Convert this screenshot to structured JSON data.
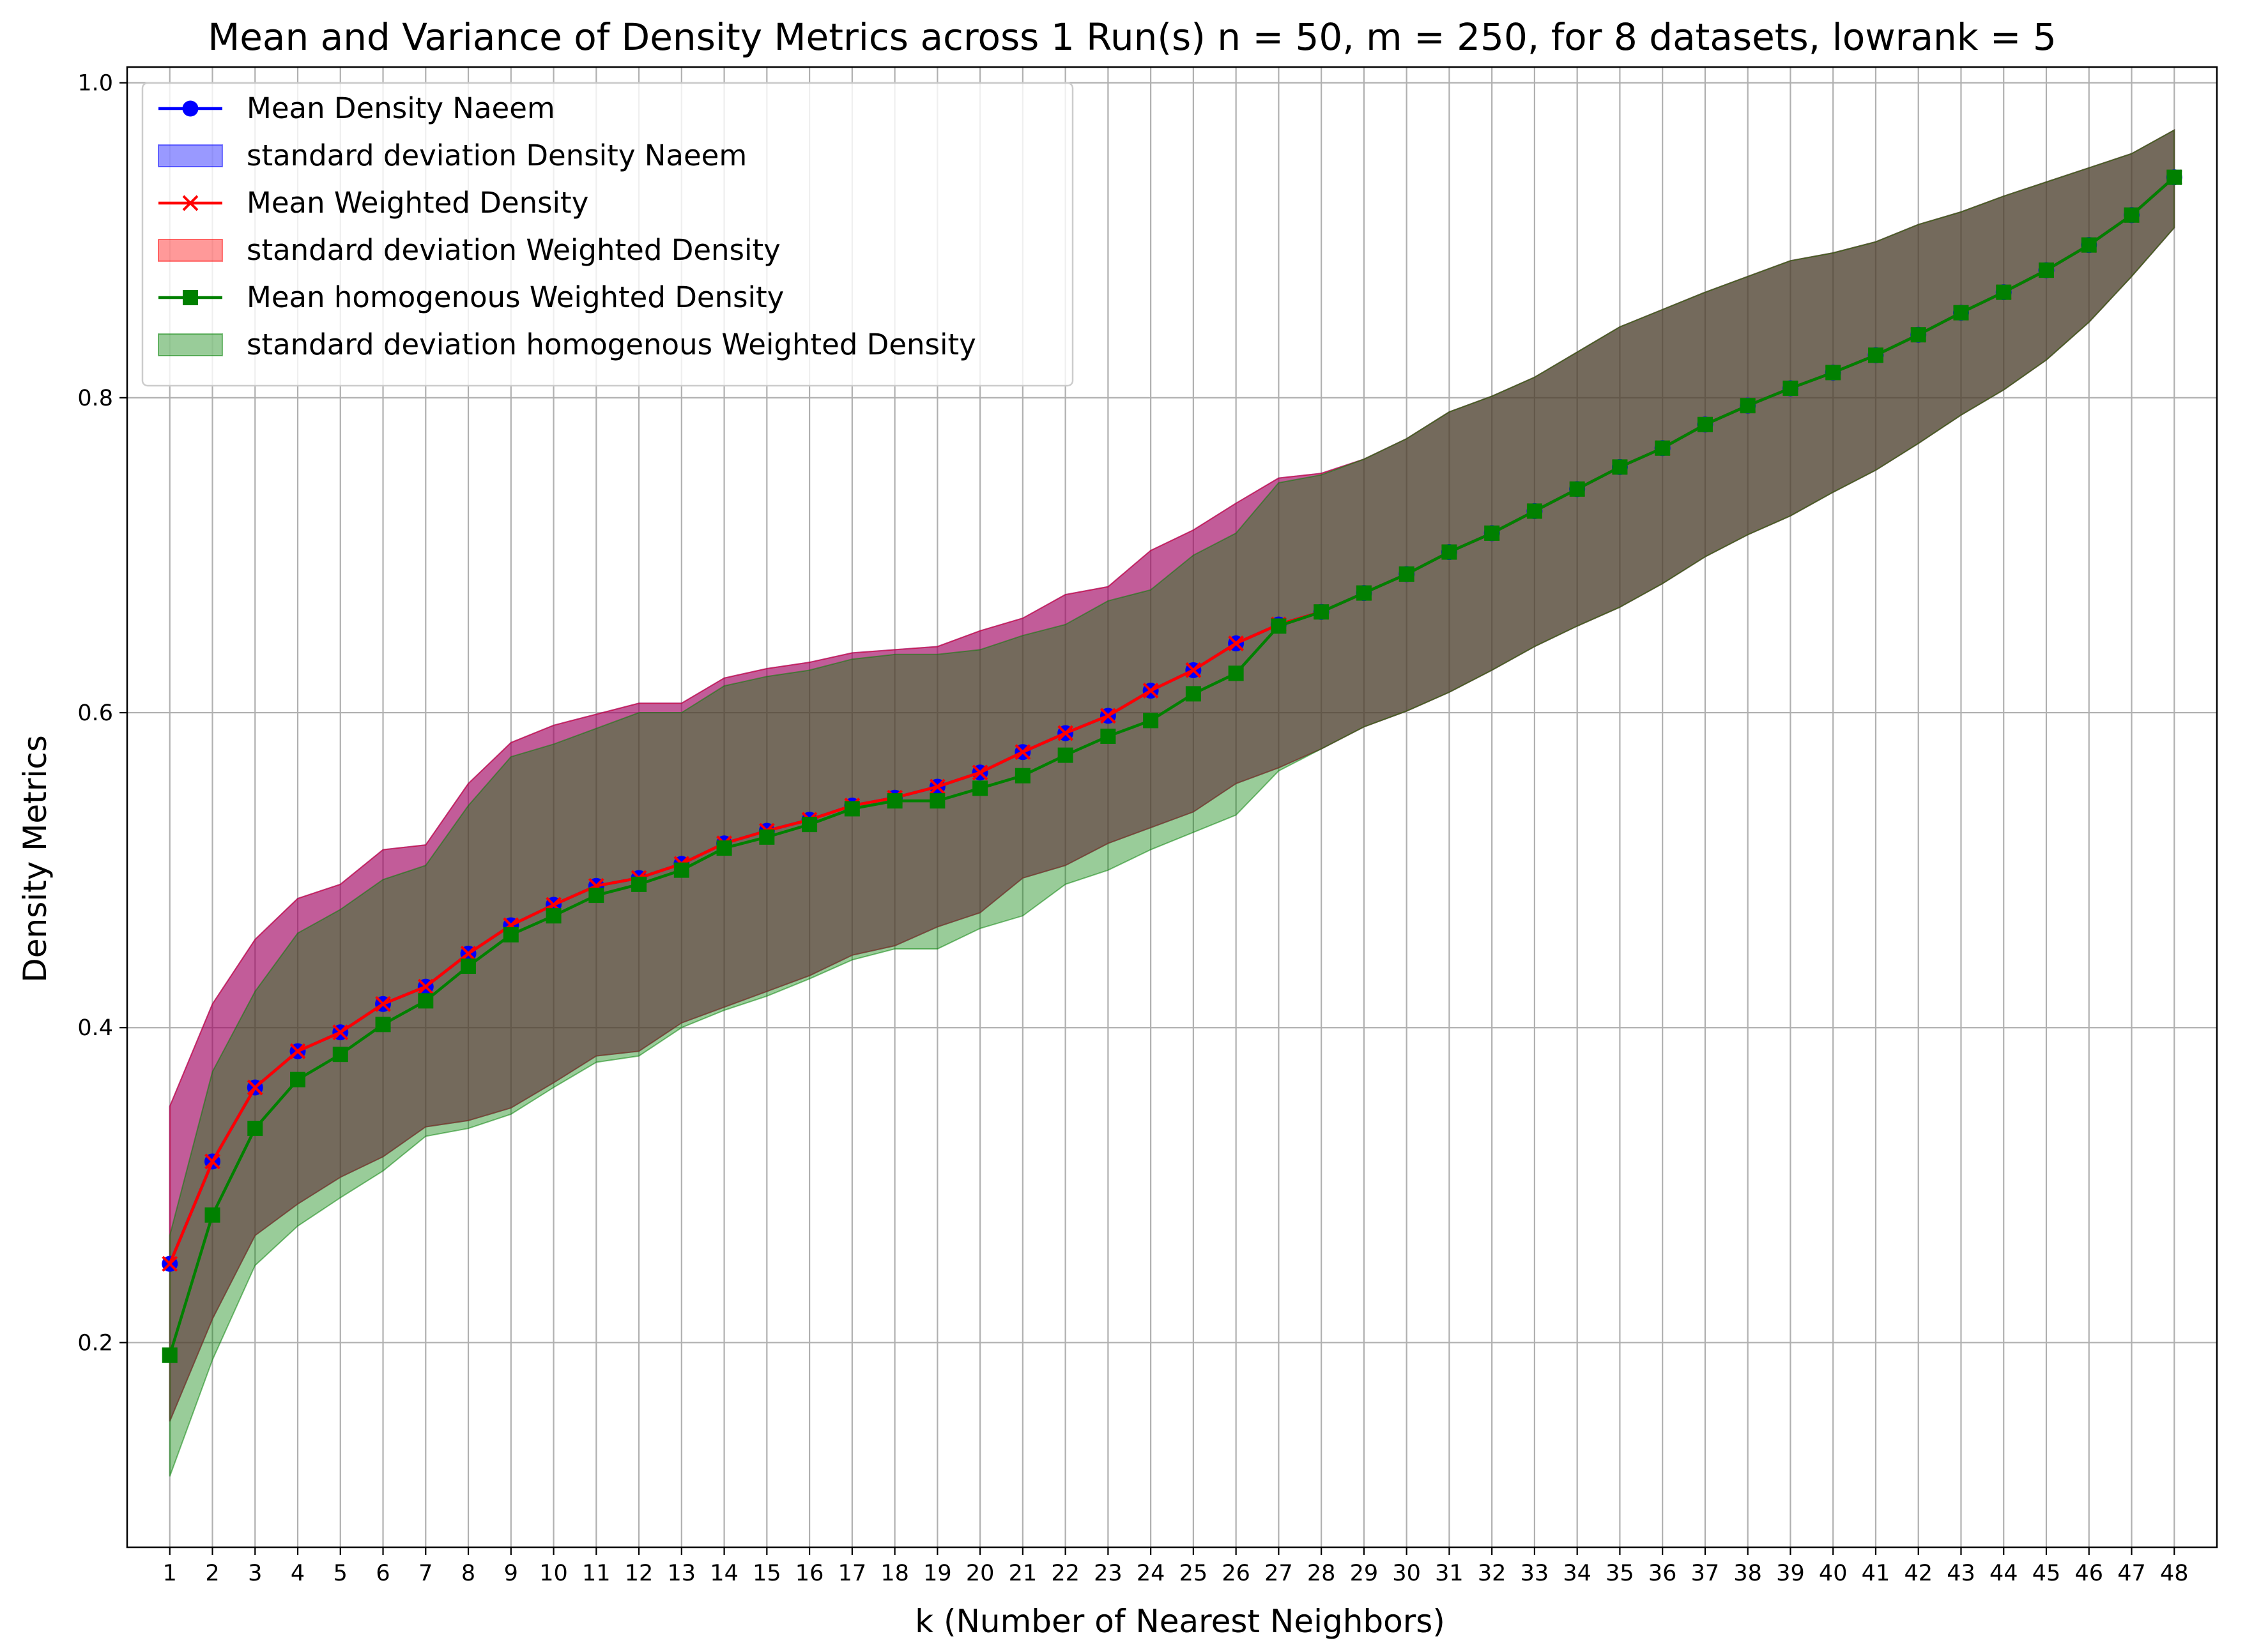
{
  "chart_data": {
    "type": "line",
    "title": "Mean and Variance of Density Metrics across 1 Run(s) n  = 50, m  = 250, for 8 datasets, lowrank = 5",
    "xlabel": "k (Number of Nearest Neighbors)",
    "ylabel": "Density Metrics",
    "xlim": [
      0.0,
      49.0
    ],
    "ylim": [
      0.07,
      1.01
    ],
    "yticks": [
      0.2,
      0.4,
      0.6,
      0.8,
      1.0
    ],
    "ytick_labels": [
      "0.2",
      "0.4",
      "0.6",
      "0.8",
      "1.0"
    ],
    "grid": true,
    "legend_position": "upper-left",
    "x": [
      1,
      2,
      3,
      4,
      5,
      6,
      7,
      8,
      9,
      10,
      11,
      12,
      13,
      14,
      15,
      16,
      17,
      18,
      19,
      20,
      21,
      22,
      23,
      24,
      25,
      26,
      27,
      28,
      29,
      30,
      31,
      32,
      33,
      34,
      35,
      36,
      37,
      38,
      39,
      40,
      41,
      42,
      43,
      44,
      45,
      46,
      47,
      48
    ],
    "xtick_labels": [
      "1",
      "2",
      "3",
      "4",
      "5",
      "6",
      "7",
      "8",
      "9",
      "10",
      "11",
      "12",
      "13",
      "14",
      "15",
      "16",
      "17",
      "18",
      "19",
      "20",
      "21",
      "22",
      "23",
      "24",
      "25",
      "26",
      "27",
      "28",
      "29",
      "30",
      "31",
      "32",
      "33",
      "34",
      "35",
      "36",
      "37",
      "38",
      "39",
      "40",
      "41",
      "42",
      "43",
      "44",
      "45",
      "46",
      "47",
      "48"
    ],
    "legend": [
      {
        "label": "Mean Density Naeem",
        "kind": "line",
        "color": "#0000ff",
        "marker": "circle"
      },
      {
        "label": "standard deviation Density Naeem",
        "kind": "band",
        "color": "#0000ff"
      },
      {
        "label": "Mean Weighted Density",
        "kind": "line",
        "color": "#ff0000",
        "marker": "x"
      },
      {
        "label": "standard deviation Weighted Density",
        "kind": "band",
        "color": "#ff0000"
      },
      {
        "label": "Mean homogenous Weighted Density",
        "kind": "line",
        "color": "#008000",
        "marker": "square"
      },
      {
        "label": "standard deviation homogenous Weighted Density",
        "kind": "band",
        "color": "#008000"
      }
    ],
    "series": [
      {
        "name": "Mean Density Naeem",
        "color": "#0000ff",
        "marker": "circle",
        "values": [
          0.25,
          0.315,
          0.362,
          0.385,
          0.397,
          0.415,
          0.426,
          0.447,
          0.465,
          0.478,
          0.49,
          0.495,
          0.504,
          0.517,
          0.525,
          0.532,
          0.541,
          0.546,
          0.553,
          0.562,
          0.575,
          0.587,
          0.598,
          0.614,
          0.627,
          0.644,
          0.656,
          0.664,
          0.676,
          0.688,
          0.702,
          0.714,
          0.728,
          0.742,
          0.756,
          0.768,
          0.783,
          0.795,
          0.806,
          0.816,
          0.827,
          0.84,
          0.854,
          0.867,
          0.881,
          0.897,
          0.916,
          0.94
        ],
        "std_lower": [
          0.15,
          0.215,
          0.268,
          0.288,
          0.305,
          0.318,
          0.337,
          0.341,
          0.349,
          0.365,
          0.382,
          0.385,
          0.403,
          0.413,
          0.423,
          0.433,
          0.446,
          0.452,
          0.464,
          0.473,
          0.495,
          0.503,
          0.517,
          0.527,
          0.537,
          0.555,
          0.565,
          0.577,
          0.591,
          0.601,
          0.613,
          0.627,
          0.642,
          0.655,
          0.667,
          0.682,
          0.699,
          0.713,
          0.725,
          0.74,
          0.754,
          0.771,
          0.789,
          0.805,
          0.824,
          0.848,
          0.877,
          0.908
        ],
        "std_upper": [
          0.35,
          0.415,
          0.456,
          0.482,
          0.491,
          0.513,
          0.516,
          0.555,
          0.581,
          0.592,
          0.599,
          0.606,
          0.606,
          0.622,
          0.628,
          0.632,
          0.638,
          0.64,
          0.642,
          0.652,
          0.66,
          0.675,
          0.68,
          0.703,
          0.716,
          0.733,
          0.749,
          0.752,
          0.761,
          0.774,
          0.791,
          0.801,
          0.813,
          0.829,
          0.845,
          0.856,
          0.867,
          0.877,
          0.887,
          0.892,
          0.899,
          0.91,
          0.918,
          0.928,
          0.937,
          0.946,
          0.955,
          0.97
        ]
      },
      {
        "name": "Mean Weighted Density",
        "color": "#ff0000",
        "marker": "x",
        "values": [
          0.25,
          0.315,
          0.362,
          0.385,
          0.397,
          0.415,
          0.426,
          0.447,
          0.465,
          0.478,
          0.49,
          0.495,
          0.504,
          0.517,
          0.525,
          0.532,
          0.541,
          0.546,
          0.553,
          0.562,
          0.575,
          0.587,
          0.598,
          0.614,
          0.627,
          0.644,
          0.656,
          0.664,
          0.676,
          0.688,
          0.702,
          0.714,
          0.728,
          0.742,
          0.756,
          0.768,
          0.783,
          0.795,
          0.806,
          0.816,
          0.827,
          0.84,
          0.854,
          0.867,
          0.881,
          0.897,
          0.916,
          0.94
        ],
        "std_lower": [
          0.15,
          0.215,
          0.268,
          0.288,
          0.305,
          0.318,
          0.337,
          0.341,
          0.349,
          0.365,
          0.382,
          0.385,
          0.403,
          0.413,
          0.423,
          0.433,
          0.446,
          0.452,
          0.464,
          0.473,
          0.495,
          0.503,
          0.517,
          0.527,
          0.537,
          0.555,
          0.565,
          0.577,
          0.591,
          0.601,
          0.613,
          0.627,
          0.642,
          0.655,
          0.667,
          0.682,
          0.699,
          0.713,
          0.725,
          0.74,
          0.754,
          0.771,
          0.789,
          0.805,
          0.824,
          0.848,
          0.877,
          0.908
        ],
        "std_upper": [
          0.35,
          0.415,
          0.456,
          0.482,
          0.491,
          0.513,
          0.516,
          0.555,
          0.581,
          0.592,
          0.599,
          0.606,
          0.606,
          0.622,
          0.628,
          0.632,
          0.638,
          0.64,
          0.642,
          0.652,
          0.66,
          0.675,
          0.68,
          0.703,
          0.716,
          0.733,
          0.749,
          0.752,
          0.761,
          0.774,
          0.791,
          0.801,
          0.813,
          0.829,
          0.845,
          0.856,
          0.867,
          0.877,
          0.887,
          0.892,
          0.899,
          0.91,
          0.918,
          0.928,
          0.937,
          0.946,
          0.955,
          0.97
        ]
      },
      {
        "name": "Mean homogenous Weighted Density",
        "color": "#008000",
        "marker": "square",
        "values": [
          0.192,
          0.281,
          0.336,
          0.367,
          0.383,
          0.402,
          0.417,
          0.439,
          0.459,
          0.471,
          0.484,
          0.491,
          0.5,
          0.514,
          0.521,
          0.529,
          0.539,
          0.544,
          0.544,
          0.552,
          0.56,
          0.573,
          0.585,
          0.595,
          0.612,
          0.625,
          0.655,
          0.664,
          0.676,
          0.688,
          0.702,
          0.714,
          0.728,
          0.742,
          0.756,
          0.768,
          0.783,
          0.795,
          0.806,
          0.816,
          0.827,
          0.84,
          0.854,
          0.867,
          0.881,
          0.897,
          0.916,
          0.94
        ],
        "std_lower": [
          0.115,
          0.189,
          0.249,
          0.274,
          0.292,
          0.309,
          0.331,
          0.336,
          0.345,
          0.362,
          0.378,
          0.382,
          0.4,
          0.411,
          0.42,
          0.431,
          0.443,
          0.45,
          0.45,
          0.463,
          0.471,
          0.491,
          0.5,
          0.513,
          0.524,
          0.535,
          0.563,
          0.577,
          0.591,
          0.601,
          0.613,
          0.627,
          0.642,
          0.655,
          0.667,
          0.682,
          0.699,
          0.713,
          0.725,
          0.74,
          0.754,
          0.771,
          0.789,
          0.805,
          0.824,
          0.848,
          0.877,
          0.908
        ],
        "std_upper": [
          0.268,
          0.372,
          0.423,
          0.46,
          0.475,
          0.494,
          0.503,
          0.541,
          0.572,
          0.58,
          0.59,
          0.6,
          0.6,
          0.617,
          0.623,
          0.627,
          0.634,
          0.637,
          0.637,
          0.64,
          0.649,
          0.656,
          0.671,
          0.678,
          0.7,
          0.714,
          0.746,
          0.751,
          0.761,
          0.774,
          0.791,
          0.801,
          0.813,
          0.829,
          0.845,
          0.856,
          0.867,
          0.877,
          0.887,
          0.892,
          0.899,
          0.91,
          0.918,
          0.928,
          0.937,
          0.946,
          0.955,
          0.97
        ]
      }
    ]
  }
}
